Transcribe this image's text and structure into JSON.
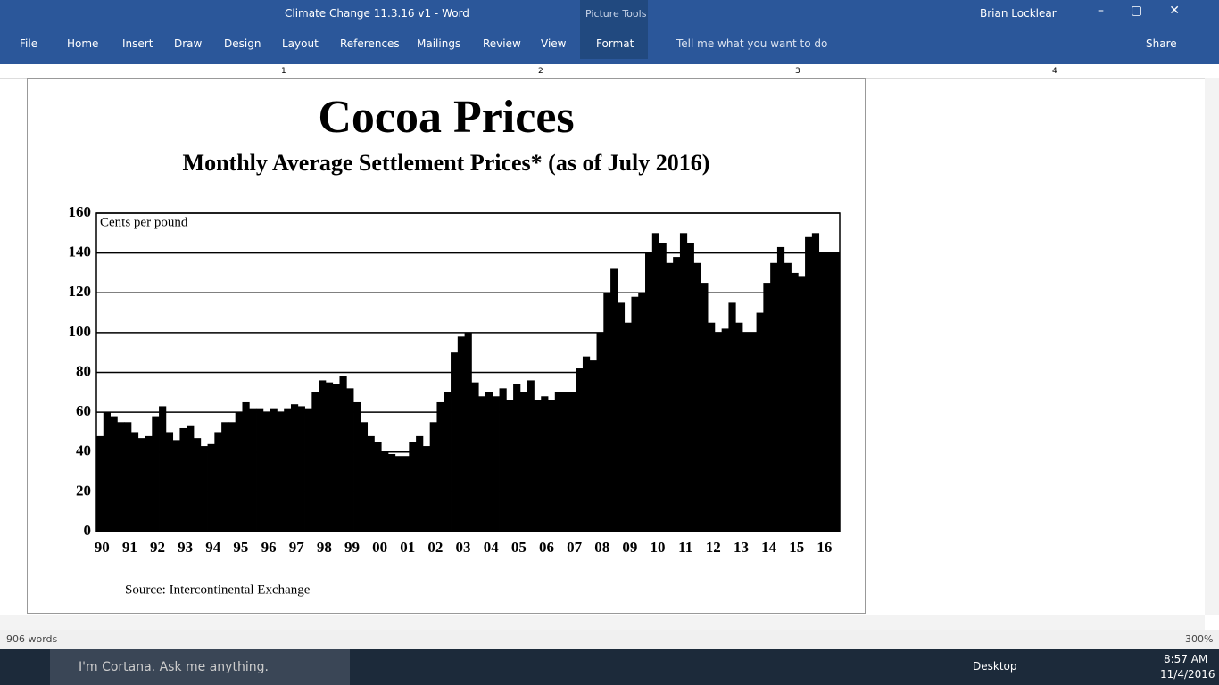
{
  "window": {
    "title": "Climate Change 11.3.16 v1 - Word",
    "context_tab": "Picture Tools",
    "user": "Brian Locklear",
    "tabs": [
      "File",
      "Home",
      "Insert",
      "Draw",
      "Design",
      "Layout",
      "References",
      "Mailings",
      "Review",
      "View",
      "Format"
    ],
    "tell_me": "Tell me what you want to do",
    "share": "Share"
  },
  "ruler": [
    "1",
    "2",
    "3",
    "4"
  ],
  "status": {
    "words": "906 words",
    "zoom": "300%"
  },
  "taskbar": {
    "search": "I'm Cortana. Ask me anything.",
    "desktop": "Desktop",
    "time": "8:57 AM",
    "date": "11/4/2016"
  },
  "chart_data": {
    "type": "bar",
    "title": "Cocoa Prices",
    "subtitle": "Monthly Average Settlement Prices* (as of July 2016)",
    "y_label": "Cents per pound",
    "source": "Source:  Intercontinental Exchange",
    "color": "#000000",
    "grid": true,
    "ylim": [
      0,
      160
    ],
    "yticks": [
      0,
      20,
      40,
      60,
      80,
      100,
      120,
      140,
      160
    ],
    "categories": [
      "90",
      null,
      null,
      null,
      "91",
      null,
      null,
      null,
      "92",
      null,
      null,
      null,
      "93",
      null,
      null,
      null,
      "94",
      null,
      null,
      null,
      "95",
      null,
      null,
      null,
      "96",
      null,
      null,
      null,
      "97",
      null,
      null,
      null,
      "98",
      null,
      null,
      null,
      "99",
      null,
      null,
      null,
      "00",
      null,
      null,
      null,
      "01",
      null,
      null,
      null,
      "02",
      null,
      null,
      null,
      "03",
      null,
      null,
      null,
      "04",
      null,
      null,
      null,
      "05",
      null,
      null,
      null,
      "06",
      null,
      null,
      null,
      "07",
      null,
      null,
      null,
      "08",
      null,
      null,
      null,
      "09",
      null,
      null,
      null,
      "10",
      null,
      null,
      null,
      "11",
      null,
      null,
      null,
      "12",
      null,
      null,
      null,
      "13",
      null,
      null,
      null,
      "14",
      null,
      null,
      null,
      "15",
      null,
      null,
      null,
      "16",
      null,
      null
    ],
    "values": [
      48,
      60,
      58,
      55,
      55,
      50,
      47,
      48,
      58,
      63,
      50,
      46,
      52,
      53,
      47,
      43,
      44,
      50,
      55,
      55,
      60,
      65,
      62,
      62,
      60,
      62,
      60,
      62,
      64,
      63,
      62,
      70,
      76,
      75,
      74,
      78,
      72,
      65,
      55,
      48,
      45,
      40,
      39,
      38,
      38,
      45,
      48,
      43,
      55,
      65,
      70,
      90,
      98,
      100,
      75,
      68,
      70,
      68,
      72,
      66,
      74,
      70,
      76,
      66,
      68,
      66,
      70,
      70,
      70,
      82,
      88,
      86,
      100,
      120,
      132,
      115,
      105,
      118,
      120,
      140,
      150,
      145,
      135,
      138,
      150,
      145,
      135,
      125,
      105,
      100,
      102,
      115,
      105,
      100,
      100,
      110,
      125,
      135,
      143,
      135,
      130,
      128,
      148,
      150,
      140,
      140,
      140
    ]
  }
}
